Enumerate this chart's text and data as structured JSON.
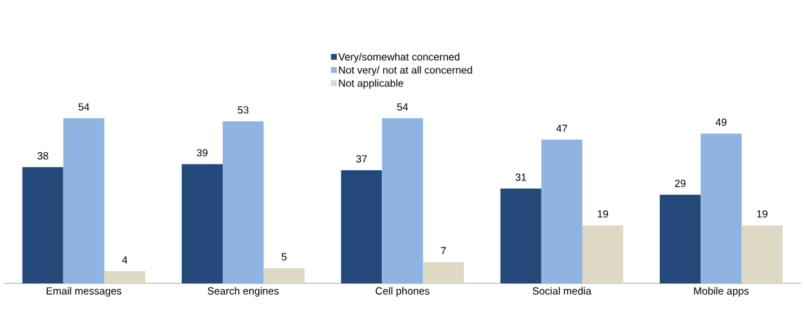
{
  "chart_data": {
    "type": "bar",
    "categories": [
      "Email messages",
      "Search engines",
      "Cell phones",
      "Social media",
      "Mobile apps"
    ],
    "series": [
      {
        "name": "Very/somewhat concerned",
        "color": "#22497a",
        "values": [
          38,
          39,
          37,
          31,
          29
        ]
      },
      {
        "name": "Not very/ not at all concerned",
        "color": "#8db4e2",
        "values": [
          54,
          53,
          54,
          47,
          49
        ]
      },
      {
        "name": "Not applicable",
        "color": "#ddd9c4",
        "values": [
          4,
          5,
          7,
          19,
          19
        ]
      }
    ],
    "data_labels": true,
    "legend": "top"
  }
}
